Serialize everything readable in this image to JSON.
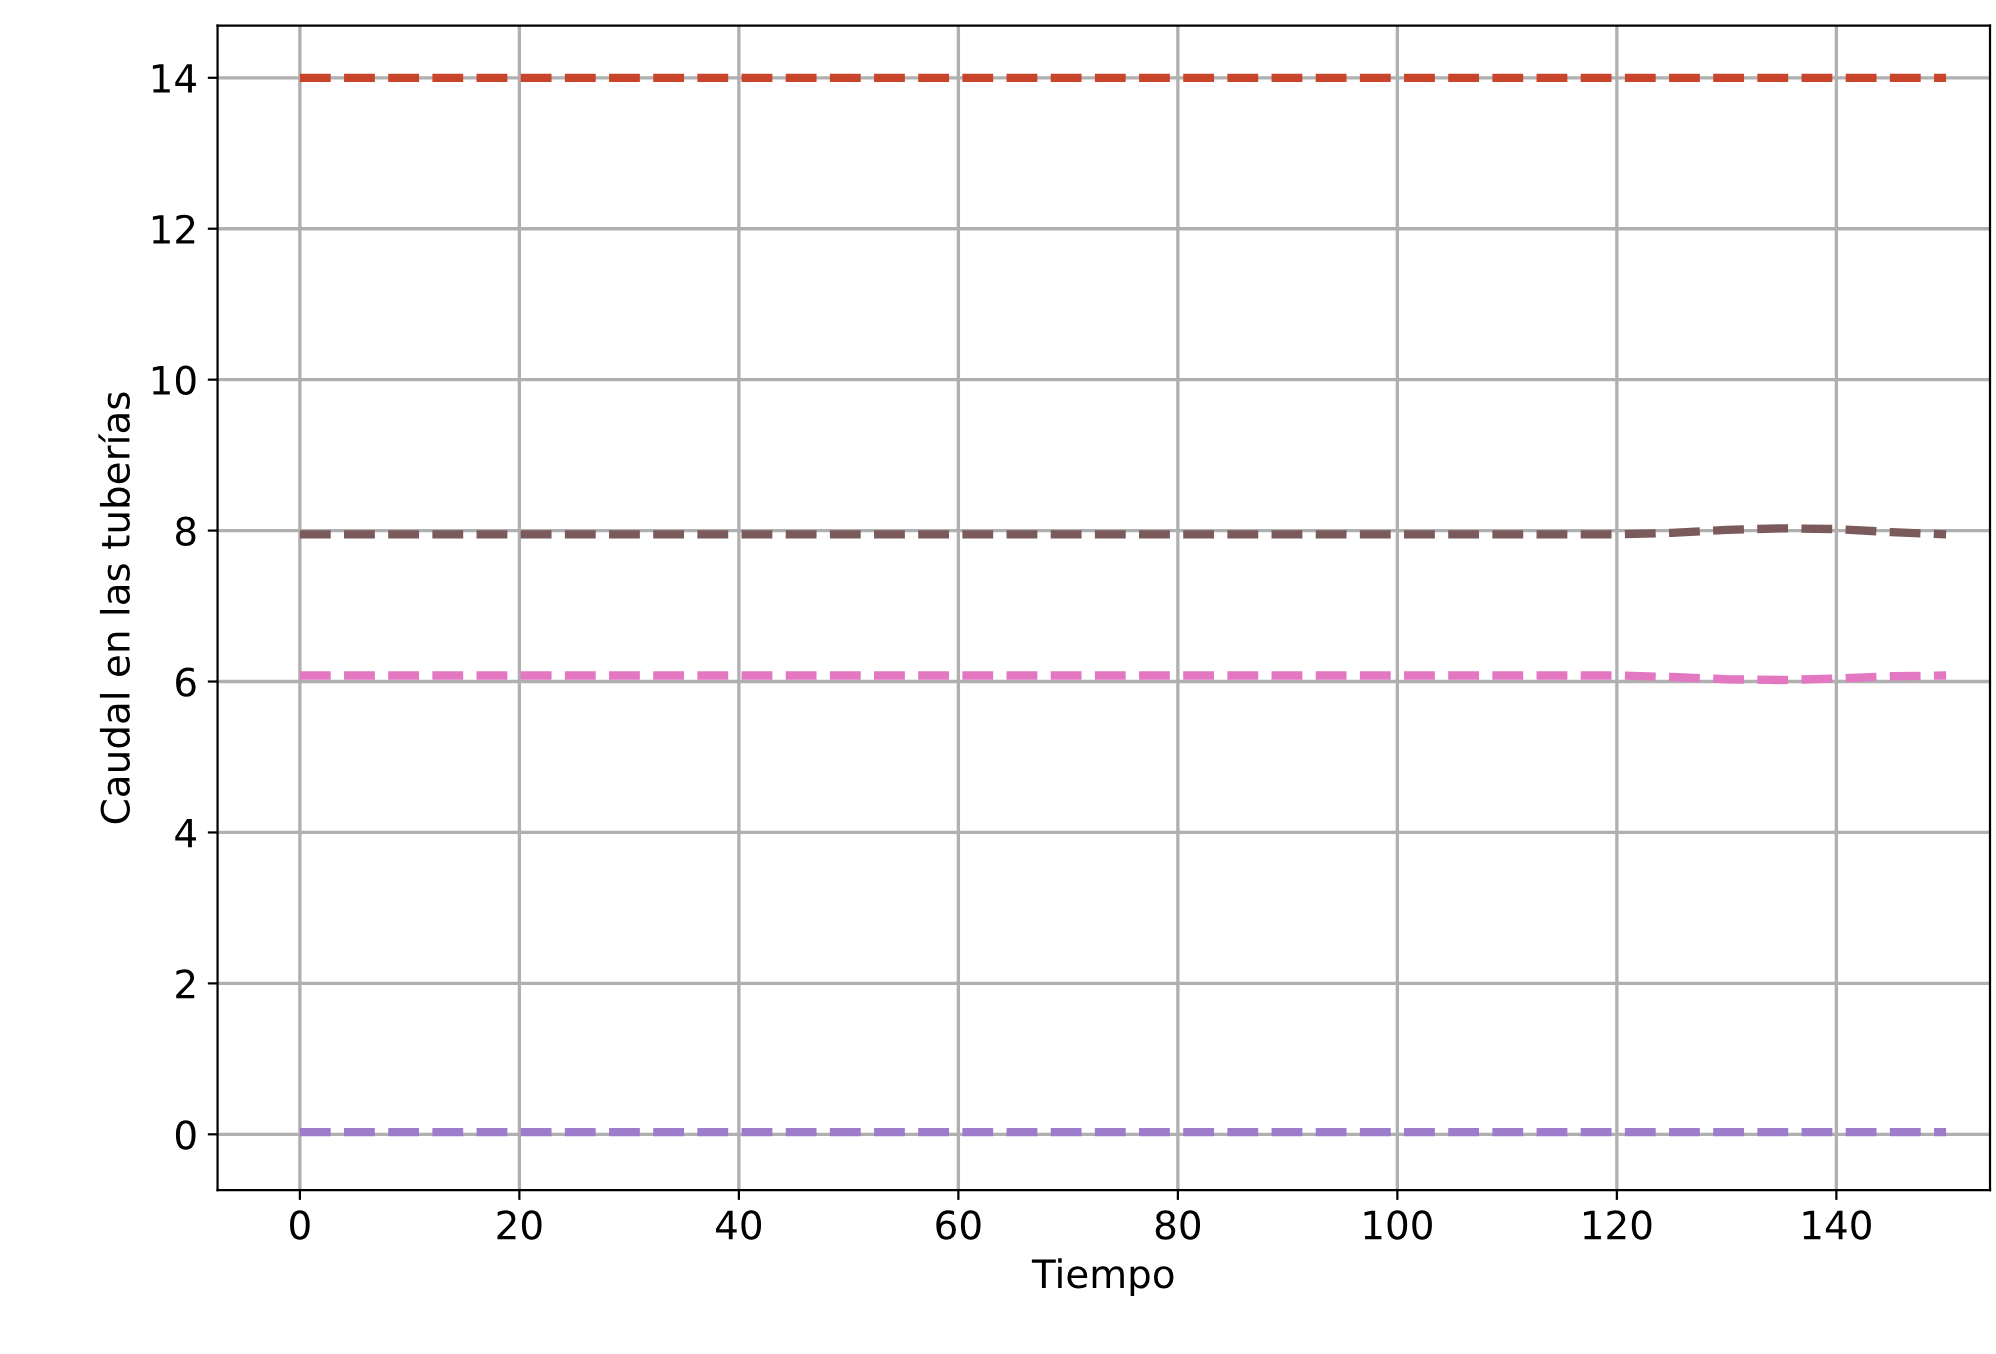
{
  "chart_data": {
    "type": "line",
    "xlabel": "Tiempo",
    "ylabel": "Caudal en las tuberías",
    "line_style": "dashed",
    "marker": "none",
    "grid": true,
    "legend": false,
    "xlim": [
      -7.5,
      154
    ],
    "ylim": [
      -0.74,
      14.69
    ],
    "xticks": [
      0,
      20,
      40,
      60,
      80,
      100,
      120,
      140
    ],
    "yticks": [
      0,
      2,
      4,
      6,
      8,
      10,
      12,
      14
    ],
    "x": [
      0,
      10,
      20,
      30,
      40,
      50,
      60,
      70,
      80,
      90,
      100,
      110,
      120,
      125,
      130,
      135,
      140,
      145,
      150
    ],
    "series": [
      {
        "color": "#c8452c",
        "values": [
          14,
          14,
          14,
          14,
          14,
          14,
          14,
          14,
          14,
          14,
          14,
          14,
          14,
          14,
          14,
          14,
          14,
          14,
          14
        ]
      },
      {
        "color": "#7a5a5a",
        "values": [
          7.95,
          7.95,
          7.95,
          7.95,
          7.95,
          7.95,
          7.95,
          7.95,
          7.95,
          7.95,
          7.95,
          7.95,
          7.95,
          7.97,
          8.01,
          8.03,
          8.02,
          7.98,
          7.95
        ]
      },
      {
        "color": "#e377c2",
        "values": [
          6.08,
          6.08,
          6.08,
          6.08,
          6.08,
          6.08,
          6.08,
          6.08,
          6.08,
          6.08,
          6.08,
          6.08,
          6.08,
          6.06,
          6.03,
          6.02,
          6.04,
          6.07,
          6.08
        ]
      },
      {
        "color": "#9e7ccc",
        "values": [
          0.03,
          0.03,
          0.03,
          0.03,
          0.03,
          0.03,
          0.03,
          0.03,
          0.03,
          0.03,
          0.03,
          0.03,
          0.03,
          0.03,
          0.03,
          0.03,
          0.03,
          0.03,
          0.03
        ]
      }
    ]
  }
}
